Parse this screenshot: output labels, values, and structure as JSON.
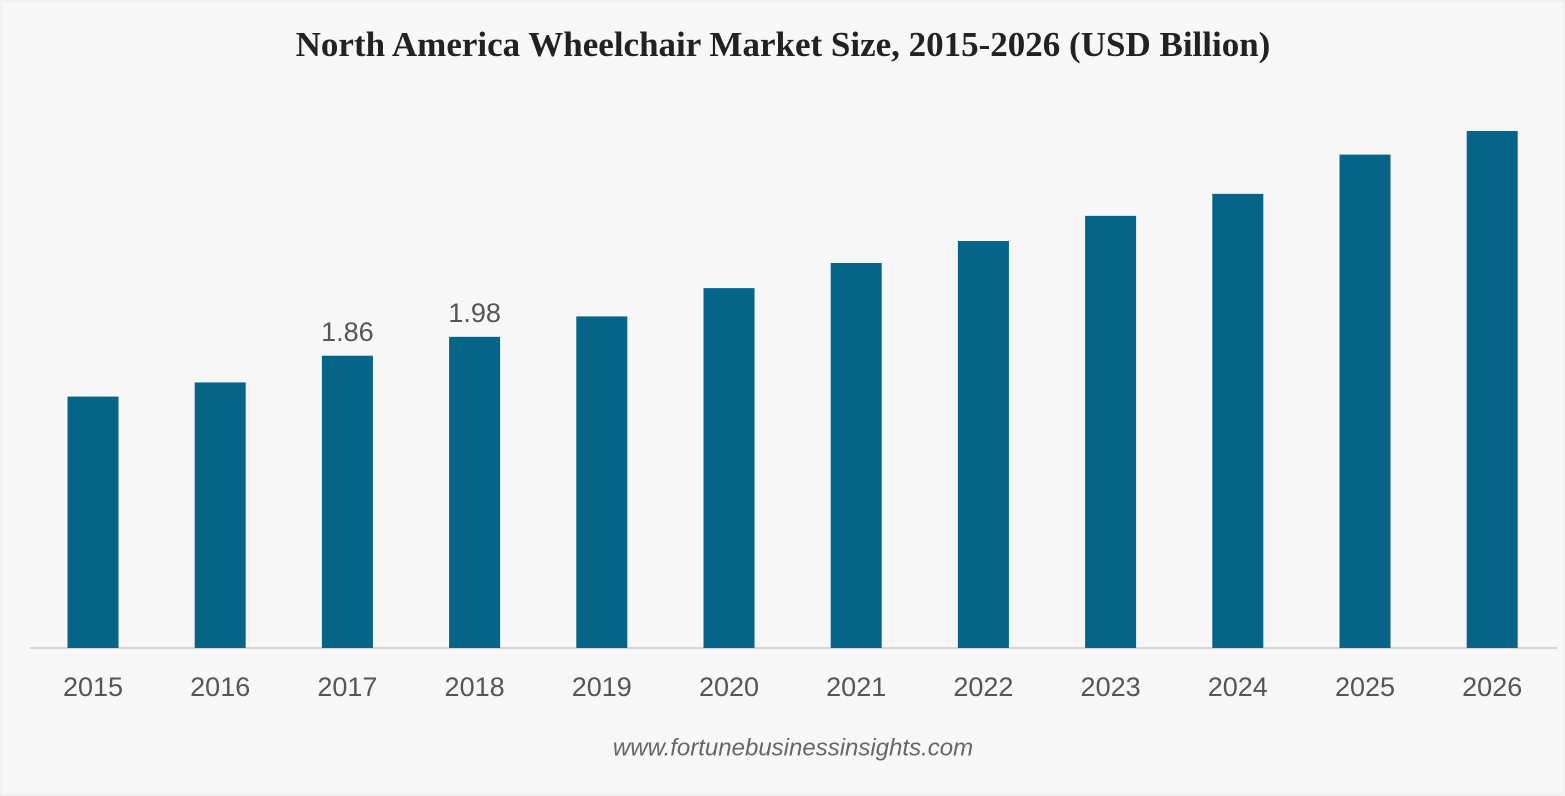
{
  "chart_data": {
    "type": "bar",
    "title": "North America Wheelchair Market Size, 2015-2026 (USD Billion)",
    "categories": [
      "2015",
      "2016",
      "2017",
      "2018",
      "2019",
      "2020",
      "2021",
      "2022",
      "2023",
      "2024",
      "2025",
      "2026"
    ],
    "values": [
      1.6,
      1.69,
      1.86,
      1.98,
      2.11,
      2.29,
      2.45,
      2.59,
      2.75,
      2.89,
      3.14,
      3.29
    ],
    "value_labels": [
      null,
      null,
      "1.86",
      "1.98",
      null,
      null,
      null,
      null,
      null,
      null,
      null,
      null
    ],
    "color": "#066488",
    "source": "www.fortunebusinessinsights.com"
  }
}
